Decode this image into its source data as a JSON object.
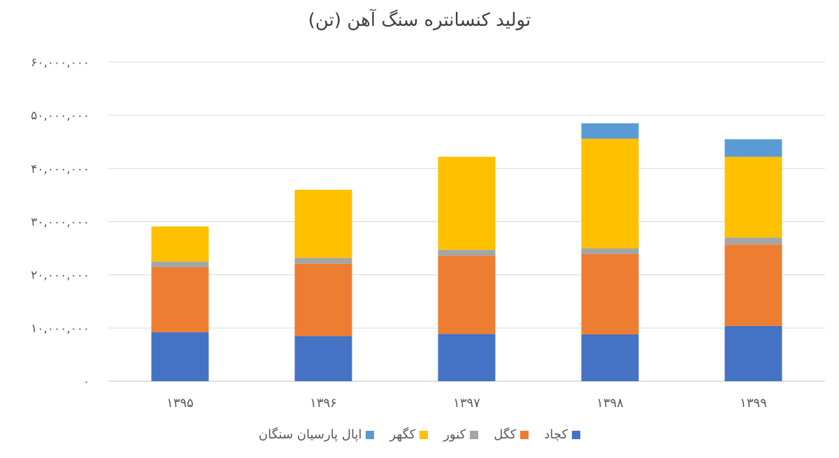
{
  "chart_data": {
    "type": "bar",
    "stacked": true,
    "title": "تولید کنسانتره سنگ آهن (تن)",
    "categories": [
      "۱۳۹۵",
      "۱۳۹۶",
      "۱۳۹۷",
      "۱۳۹۸",
      "۱۳۹۹"
    ],
    "ylim": [
      0,
      60000000
    ],
    "yticks": [
      0,
      10000000,
      20000000,
      30000000,
      40000000,
      50000000,
      60000000
    ],
    "ytick_labels": [
      "۰",
      "۱۰,۰۰۰,۰۰۰",
      "۲۰,۰۰۰,۰۰۰",
      "۳۰,۰۰۰,۰۰۰",
      "۴۰,۰۰۰,۰۰۰",
      "۵۰,۰۰۰,۰۰۰",
      "۶۰,۰۰۰,۰۰۰"
    ],
    "grid": true,
    "legend_position": "bottom",
    "series": [
      {
        "name": "کچاد",
        "color": "#4472C4",
        "values": [
          9200000,
          8500000,
          8900000,
          8800000,
          10400000
        ]
      },
      {
        "name": "کگل",
        "color": "#ED7D31",
        "values": [
          12200000,
          13600000,
          14700000,
          15100000,
          15300000
        ]
      },
      {
        "name": "کنور",
        "color": "#A5A5A5",
        "values": [
          1100000,
          1100000,
          1100000,
          1100000,
          1300000
        ]
      },
      {
        "name": "کگهر",
        "color": "#FFC000",
        "values": [
          6600000,
          12800000,
          17500000,
          20600000,
          15200000
        ]
      },
      {
        "name": "اپال پارسیان سنگان",
        "color": "#5B9BD5",
        "values": [
          0,
          0,
          0,
          2900000,
          3300000
        ]
      }
    ]
  }
}
